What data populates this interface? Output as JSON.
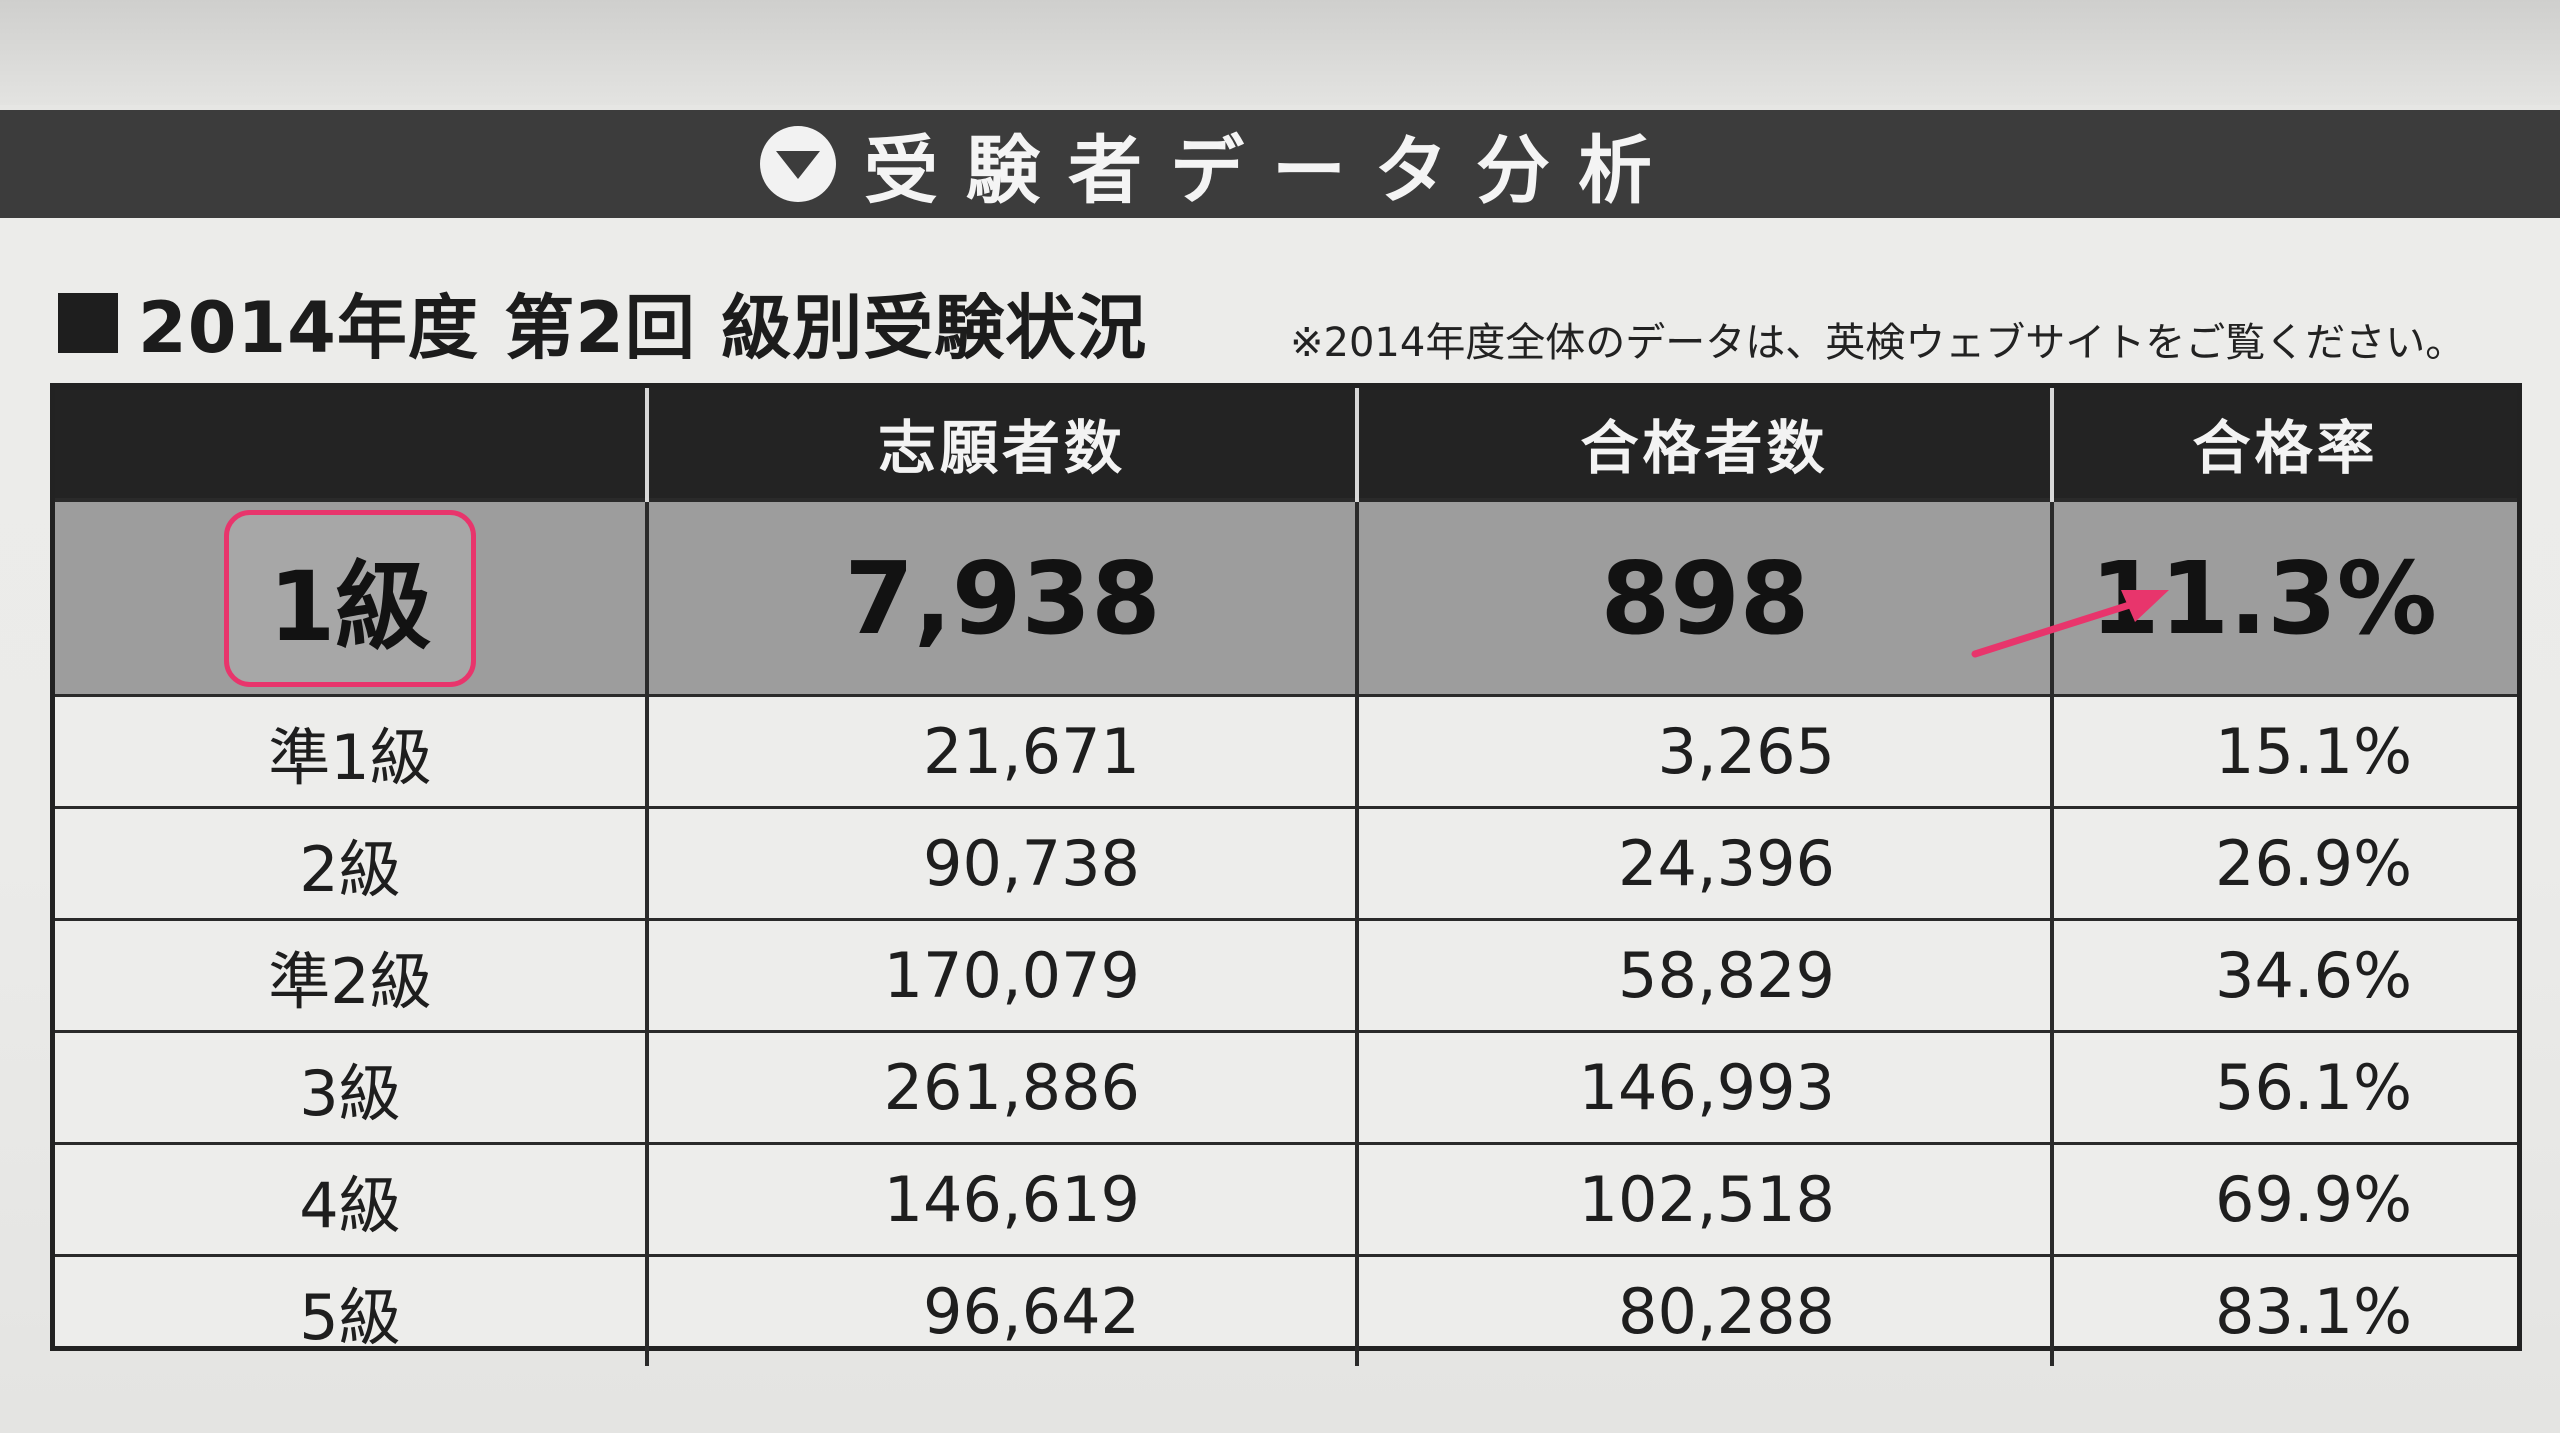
{
  "banner": {
    "title": "受験者データ分析"
  },
  "subhead": {
    "title": "2014年度 第2回 級別受験状況",
    "note": "※2014年度全体のデータは、英検ウェブサイトをご覧ください。"
  },
  "table": {
    "headers": [
      "",
      "志願者数",
      "合格者数",
      "合格率"
    ],
    "rows": [
      {
        "grade": "1級",
        "applicants": "7,938",
        "passers": "898",
        "rate": "11.3%"
      },
      {
        "grade": "準1級",
        "applicants": "21,671",
        "passers": "3,265",
        "rate": "15.1%"
      },
      {
        "grade": "2級",
        "applicants": "90,738",
        "passers": "24,396",
        "rate": "26.9%"
      },
      {
        "grade": "準2級",
        "applicants": "170,079",
        "passers": "58,829",
        "rate": "34.6%"
      },
      {
        "grade": "3級",
        "applicants": "261,886",
        "passers": "146,993",
        "rate": "56.1%"
      },
      {
        "grade": "4級",
        "applicants": "146,619",
        "passers": "102,518",
        "rate": "69.9%"
      },
      {
        "grade": "5級",
        "applicants": "96,642",
        "passers": "80,288",
        "rate": "83.1%"
      }
    ]
  },
  "colors": {
    "highlight_border": "#e8356c",
    "arrow": "#e8356c",
    "header_bg": "#232323",
    "highlight_row_bg": "#9d9d9d"
  },
  "icons": {
    "banner_icon": "chevron-down-circle-icon",
    "annotation": "pink-arrow-icon"
  }
}
